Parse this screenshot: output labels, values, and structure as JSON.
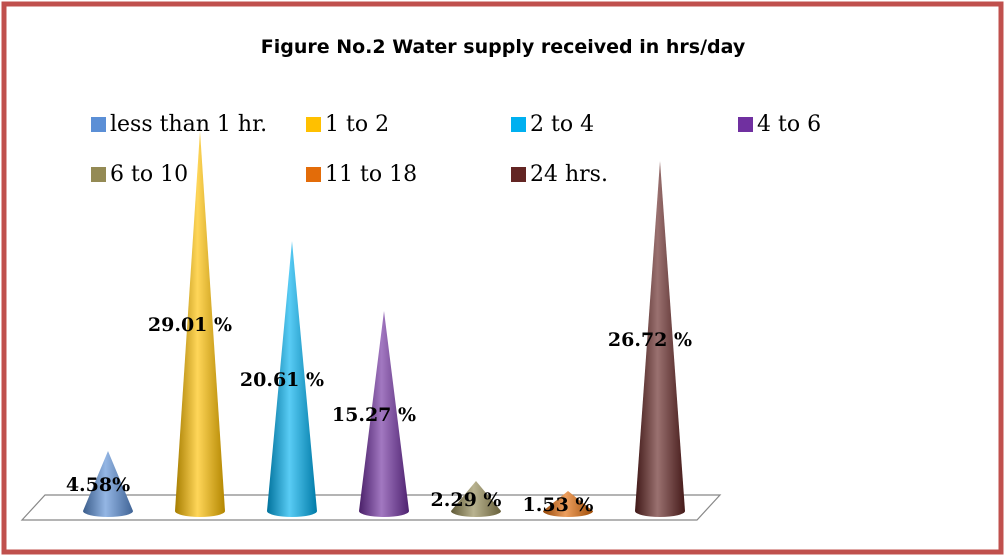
{
  "chart_data": {
    "type": "cone",
    "title": "Figure No.2 Water supply  received in hrs/day",
    "categories": [
      "less than 1 hr.",
      "1 to 2",
      "2 to 4",
      "4 to 6",
      "6 to 10",
      "11 to 18",
      "24 hrs."
    ],
    "values": [
      4.58,
      29.01,
      20.61,
      15.27,
      2.29,
      1.53,
      26.72
    ],
    "value_labels": [
      "4.58%",
      "29.01 %",
      "20.61 %",
      "15.27 %",
      "2.29 %",
      "1.53 %",
      "26.72 %"
    ],
    "colors": [
      "#5b8fd6",
      "#ffc000",
      "#00b0f0",
      "#7030a0",
      "#948a54",
      "#e36c09",
      "#632523"
    ]
  }
}
